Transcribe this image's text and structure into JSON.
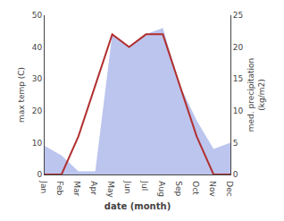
{
  "chart_data": {
    "type": "line",
    "categories": [
      "Jan",
      "Feb",
      "Mar",
      "Apr",
      "May",
      "Jun",
      "Jul",
      "Aug",
      "Sep",
      "Oct",
      "Nov",
      "Dec"
    ],
    "series": [
      {
        "type": "area",
        "color": "#bcc5ee",
        "values": [
          9,
          6,
          1,
          1,
          44,
          40,
          44,
          46,
          28,
          17,
          8,
          10
        ]
      },
      {
        "type": "line",
        "color": "#b03030",
        "axis": "y2",
        "values": [
          0,
          0,
          6,
          14,
          22,
          20,
          22,
          22,
          14,
          6,
          0,
          0
        ]
      }
    ],
    "xlabel": "date (month)",
    "ylabel": "max temp (C)",
    "y2label": "med. precipitation\n(kg/m2)",
    "ylim": [
      0,
      50
    ],
    "yticks": [
      0,
      10,
      20,
      30,
      40,
      50
    ],
    "y2lim": [
      0,
      25
    ],
    "y2ticks": [
      0,
      5,
      10,
      15,
      20,
      25
    ],
    "grid": false
  }
}
